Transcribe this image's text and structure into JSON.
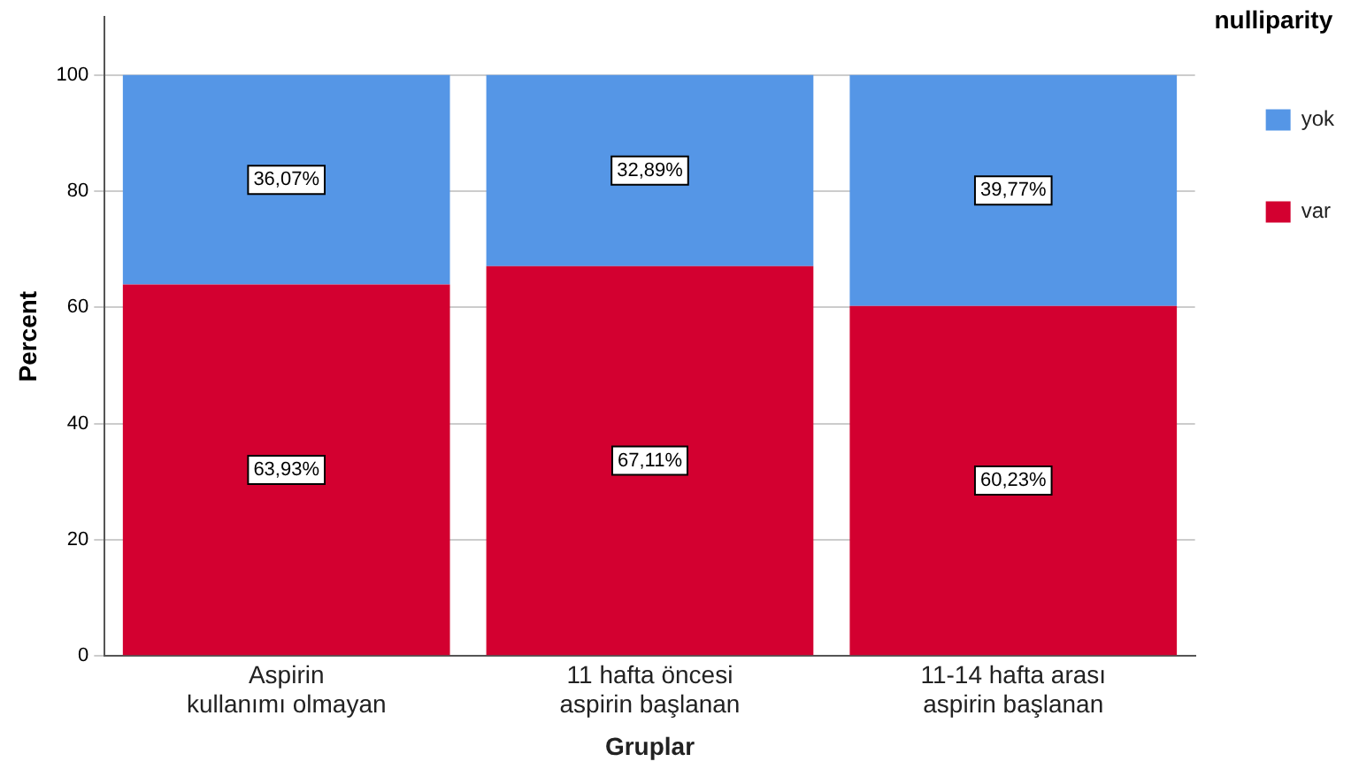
{
  "chart_data": {
    "type": "bar",
    "stacked": true,
    "xlabel": "Gruplar",
    "ylabel": "Percent",
    "legend_title": "nulliparity",
    "legend": "top right",
    "grid": "y",
    "categories": [
      "Aspirin kullanımı olmayan",
      "11 hafta öncesi aspirin başlanan",
      "11-14 hafta arası aspirin başlanan"
    ],
    "ylim": [
      0,
      110
    ],
    "yticks": [
      0,
      20,
      40,
      60,
      80,
      100
    ],
    "series": [
      {
        "name": "var",
        "color": "#d30030",
        "values": [
          63.93,
          67.11,
          60.23
        ],
        "value_labels": [
          "63,93%",
          "67,11%",
          "60,23%"
        ]
      },
      {
        "name": "yok",
        "color": "#5596e6",
        "values": [
          36.07,
          32.89,
          39.77
        ],
        "value_labels": [
          "36,07%",
          "32,89%",
          "39,77%"
        ]
      }
    ]
  }
}
